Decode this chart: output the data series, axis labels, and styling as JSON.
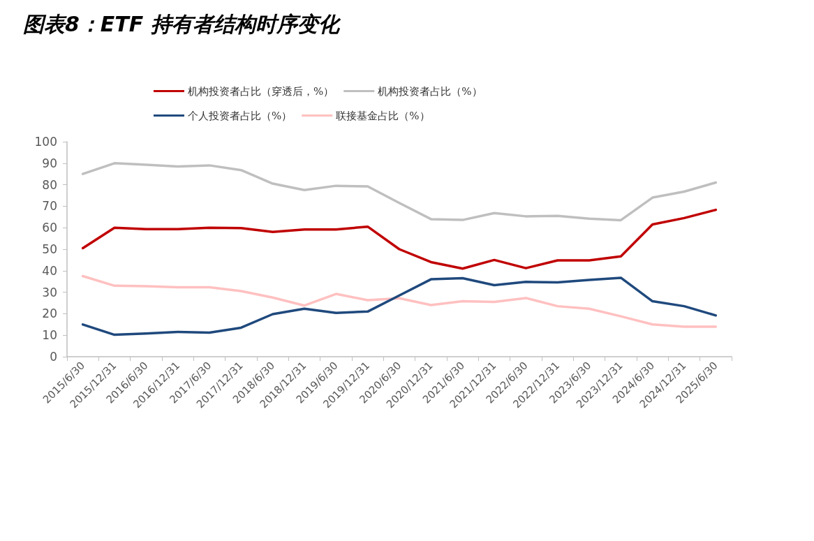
{
  "chart_data": {
    "type": "line",
    "title": "图表8：ETF 持有者结构时序变化",
    "categories": [
      "2015/6/30",
      "2015/12/31",
      "2016/6/30",
      "2016/12/31",
      "2017/6/30",
      "2017/12/31",
      "2018/6/30",
      "2018/12/31",
      "2019/6/30",
      "2019/12/31",
      "2020/6/30",
      "2020/12/31",
      "2021/6/30",
      "2021/12/31",
      "2022/6/30",
      "2022/12/31",
      "2023/6/30",
      "2023/12/31",
      "2024/6/30",
      "2024/12/31",
      "2025/6/30"
    ],
    "series": [
      {
        "name": "机构投资者占比（穿透后，%）",
        "color": "#c00000",
        "values": [
          50.5,
          60,
          59.3,
          59.3,
          60,
          59.8,
          58,
          59.2,
          59.2,
          60.5,
          50,
          44,
          41,
          45,
          41.2,
          44.8,
          44.8,
          46.7,
          61.5,
          64.5,
          68.3
        ]
      },
      {
        "name": "机构投资者占比（%）",
        "color": "#bfbfbf",
        "values": [
          85,
          90,
          89.3,
          88.5,
          89,
          86.8,
          80.5,
          77.5,
          79.5,
          79.2,
          71.5,
          64,
          63.6,
          66.8,
          65.3,
          65.5,
          64.2,
          63.5,
          74,
          76.8,
          81
        ]
      },
      {
        "name": "个人投资者占比（%）",
        "color": "#1f497d",
        "values": [
          15,
          10.2,
          10.8,
          11.5,
          11.2,
          13.5,
          19.8,
          22.3,
          20.4,
          21,
          28.5,
          36,
          36.5,
          33.3,
          34.8,
          34.6,
          35.7,
          36.7,
          25.8,
          23.5,
          19.2
        ]
      },
      {
        "name": "联接基金占比（%）",
        "color": "#ffc0c0",
        "values": [
          37.5,
          33,
          32.8,
          32.3,
          32.3,
          30.5,
          27.5,
          23.8,
          29.2,
          26.3,
          27.2,
          24,
          25.8,
          25.5,
          27.3,
          23.5,
          22.3,
          18.8,
          15,
          14,
          14
        ]
      }
    ],
    "ylim": [
      0,
      100
    ],
    "yticks": [
      0,
      10,
      20,
      30,
      40,
      50,
      60,
      70,
      80,
      90,
      100
    ],
    "grid": false,
    "legend": "top",
    "marker": "none",
    "line_style": "solid"
  }
}
